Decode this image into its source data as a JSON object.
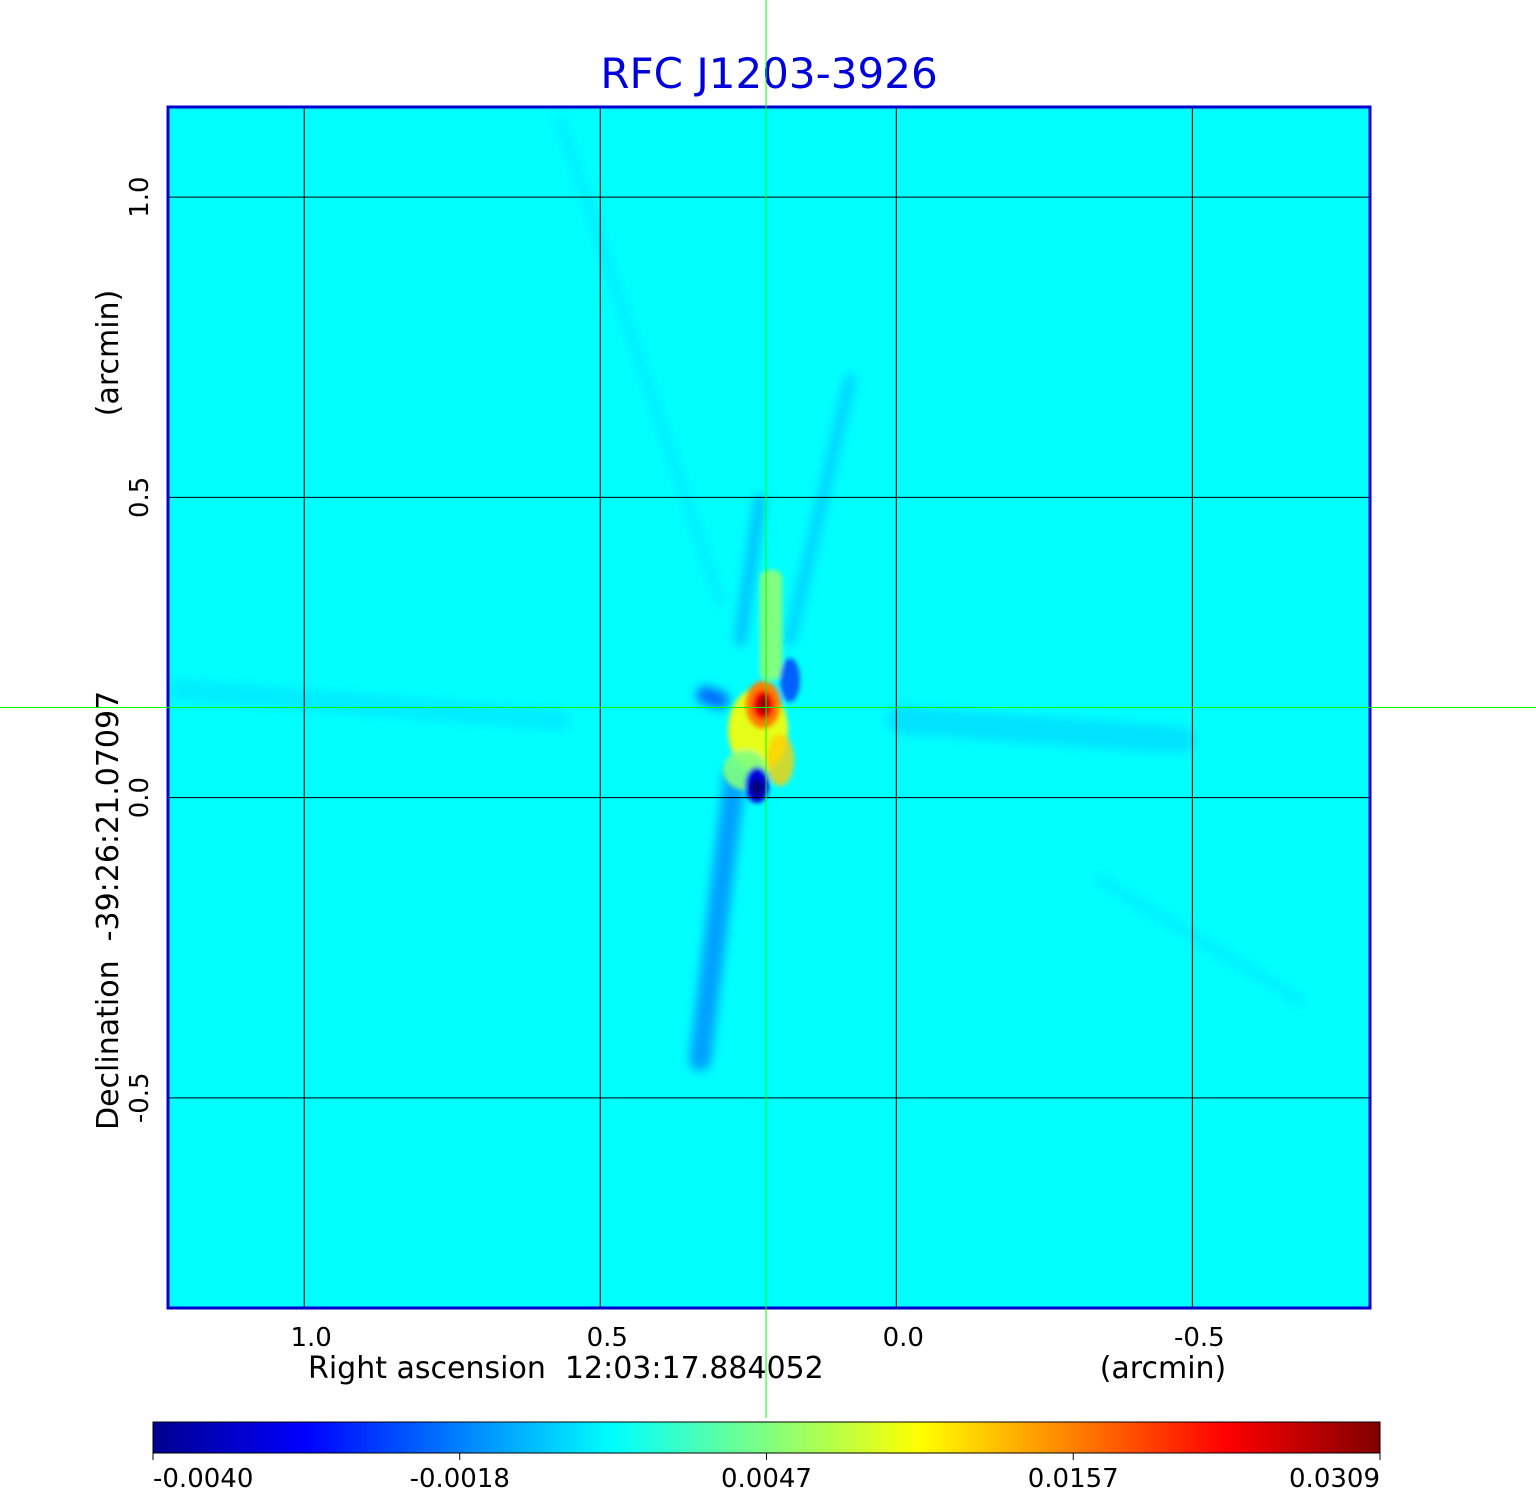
{
  "chart_data": {
    "type": "heatmap",
    "title": "RFC J1203-3926",
    "xlabel": "Right ascension  12:03:17.884052",
    "xlabel_unit": "(arcmin)",
    "ylabel": "Declination  -39:26:21.07097",
    "ylabel_unit": "(arcmin)",
    "x_ticks": [
      {
        "value": 1.0,
        "label": "1.0"
      },
      {
        "value": 0.5,
        "label": "0.5"
      },
      {
        "value": 0.0,
        "label": "0.0"
      },
      {
        "value": -0.5,
        "label": "-0.5"
      }
    ],
    "y_ticks": [
      {
        "value": 1.0,
        "label": "1.0"
      },
      {
        "value": 0.5,
        "label": "0.5"
      },
      {
        "value": 0.0,
        "label": "0.0"
      },
      {
        "value": -0.5,
        "label": "-0.5"
      }
    ],
    "xlim": [
      1.23,
      -0.8
    ],
    "ylim": [
      -0.85,
      1.15
    ],
    "grid": true,
    "crosshair": {
      "x": 0.22,
      "y": 0.15
    },
    "colorbar": {
      "ticks": [
        {
          "value": -0.004,
          "label": "-0.0040"
        },
        {
          "value": -0.0018,
          "label": "-0.0018"
        },
        {
          "value": 0.0047,
          "label": "0.0047"
        },
        {
          "value": 0.0157,
          "label": "0.0157"
        },
        {
          "value": 0.0309,
          "label": "0.0309"
        }
      ],
      "min": -0.004,
      "max": 0.0309
    },
    "colormap": [
      "#00008f",
      "#0000ff",
      "#0080ff",
      "#00ffff",
      "#80ff80",
      "#ffff00",
      "#ff8000",
      "#ff0000",
      "#800000"
    ],
    "background_level": 0.0007,
    "features": [
      {
        "x": 0.22,
        "y": 0.15,
        "value": 0.0309
      },
      {
        "x": 0.22,
        "y": 0.09,
        "value": 0.015
      },
      {
        "x": 0.2,
        "y": 0.04,
        "value": 0.008
      },
      {
        "x": 0.23,
        "y": 0.02,
        "value": -0.004
      },
      {
        "x": 0.21,
        "y": 0.3,
        "value": 0.006
      },
      {
        "x": 0.28,
        "y": 0.17,
        "value": -0.0025
      }
    ],
    "colors": {
      "title": "#0000dd",
      "frame": "#0000cc",
      "grid": "#000000",
      "crosshair": "#00ff00"
    }
  }
}
